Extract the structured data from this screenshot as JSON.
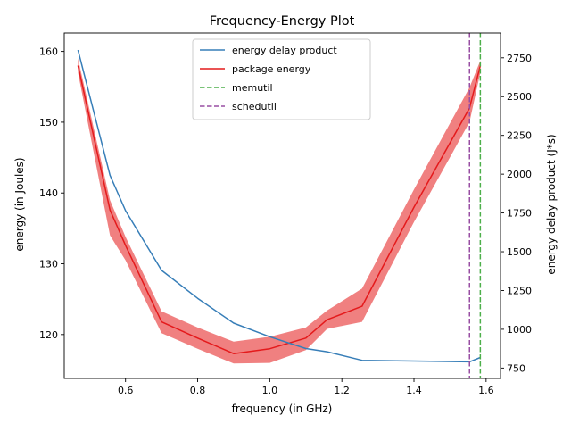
{
  "chart_data": {
    "type": "line",
    "title": "Frequency-Energy Plot",
    "xlabel": "frequency (in GHz)",
    "ylabel_left": "energy (in Joules)",
    "ylabel_right": "energy delay product (J*s)",
    "xlim": [
      0.43,
      1.64
    ],
    "ylim_left": [
      113.8,
      162.6
    ],
    "ylim_right": [
      683,
      2910
    ],
    "x_ticks": [
      0.6,
      0.8,
      1.0,
      1.2,
      1.4,
      1.6
    ],
    "x_tick_labels": [
      "0.6",
      "0.8",
      "1.0",
      "1.2",
      "1.4",
      "1.6"
    ],
    "y_left_ticks": [
      120,
      130,
      140,
      150,
      160
    ],
    "y_left_tick_labels": [
      "120",
      "130",
      "140",
      "150",
      "160"
    ],
    "y_right_ticks": [
      750,
      1000,
      1250,
      1500,
      1750,
      2000,
      2250,
      2500,
      2750
    ],
    "y_right_tick_labels": [
      "750",
      "1000",
      "1250",
      "1500",
      "1750",
      "2000",
      "2250",
      "2500",
      "2750"
    ],
    "grid": false,
    "legend_position": "top-center",
    "series": [
      {
        "name": "package energy",
        "axis": "left",
        "color": "#e41a1c",
        "band_color": "#f08080",
        "x": [
          0.468,
          0.557,
          0.6,
          0.7,
          0.8,
          0.9,
          1.0,
          1.1,
          1.159,
          1.256,
          1.4,
          1.554,
          1.584
        ],
        "y": [
          158.0,
          137.6,
          132.6,
          121.8,
          119.5,
          117.3,
          118.0,
          119.5,
          122.1,
          124.0,
          138.0,
          152.0,
          158.0
        ],
        "y_lower": [
          157.0,
          134.0,
          130.5,
          120.2,
          118.0,
          115.9,
          116.0,
          117.8,
          120.8,
          121.8,
          135.9,
          150.0,
          157.0
        ],
        "y_upper": [
          159.0,
          139.0,
          133.8,
          123.3,
          121.0,
          119.0,
          119.7,
          121.0,
          123.4,
          126.5,
          140.5,
          154.9,
          158.7
        ]
      },
      {
        "name": "energy delay product",
        "axis": "right",
        "color": "#377eb8",
        "x": [
          0.468,
          0.557,
          0.6,
          0.7,
          0.8,
          0.9,
          1.0,
          1.1,
          1.159,
          1.256,
          1.4,
          1.554,
          1.584
        ],
        "y": [
          2800,
          1993,
          1765,
          1380,
          1200,
          1040,
          952,
          876,
          855,
          800,
          795,
          790,
          818
        ]
      }
    ],
    "vlines": [
      {
        "name": "memutil",
        "x": 1.584,
        "color": "#4daf4a",
        "style": "dashed"
      },
      {
        "name": "schedutil",
        "x": 1.554,
        "color": "#984ea3",
        "style": "dashed"
      }
    ],
    "legend": [
      {
        "label": "energy delay product",
        "color": "#377eb8",
        "style": "solid"
      },
      {
        "label": "package energy",
        "color": "#e41a1c",
        "style": "solid"
      },
      {
        "label": "memutil",
        "color": "#4daf4a",
        "style": "dashed"
      },
      {
        "label": "schedutil",
        "color": "#984ea3",
        "style": "dashed"
      }
    ]
  }
}
